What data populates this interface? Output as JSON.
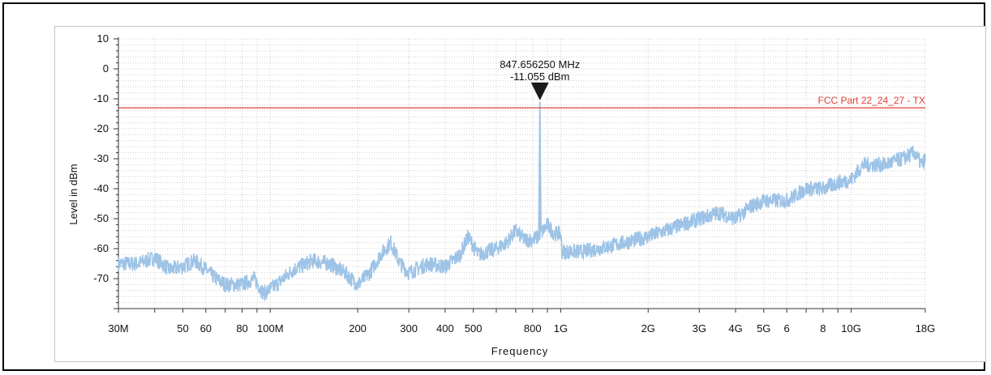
{
  "chart_data": {
    "type": "line",
    "xlabel": "Frequency",
    "ylabel": "Level in dBm",
    "xscale": "log",
    "xlim_hz": [
      30000000,
      18000000000
    ],
    "ylim": [
      -80,
      10
    ],
    "y_ticks": [
      10,
      0,
      -10,
      -20,
      -30,
      -40,
      -50,
      -60,
      -70
    ],
    "x_ticks": [
      {
        "label": "30M",
        "value_hz": 30000000
      },
      {
        "label": "50",
        "value_hz": 50000000
      },
      {
        "label": "60",
        "value_hz": 60000000
      },
      {
        "label": "80",
        "value_hz": 80000000
      },
      {
        "label": "100M",
        "value_hz": 100000000
      },
      {
        "label": "200",
        "value_hz": 200000000
      },
      {
        "label": "300",
        "value_hz": 300000000
      },
      {
        "label": "400",
        "value_hz": 400000000
      },
      {
        "label": "500",
        "value_hz": 500000000
      },
      {
        "label": "800",
        "value_hz": 800000000
      },
      {
        "label": "1G",
        "value_hz": 1000000000
      },
      {
        "label": "2G",
        "value_hz": 2000000000
      },
      {
        "label": "3G",
        "value_hz": 3000000000
      },
      {
        "label": "4G",
        "value_hz": 4000000000
      },
      {
        "label": "5G",
        "value_hz": 5000000000
      },
      {
        "label": "6",
        "value_hz": 6000000000
      },
      {
        "label": "8",
        "value_hz": 8000000000
      },
      {
        "label": "10G",
        "value_hz": 10000000000
      },
      {
        "label": "18G",
        "value_hz": 18000000000
      }
    ],
    "grid": true,
    "series": [
      {
        "color": "#9dc3e6",
        "points": [
          {
            "x": 30000000,
            "y": -65
          },
          {
            "x": 35000000,
            "y": -65
          },
          {
            "x": 40000000,
            "y": -63
          },
          {
            "x": 45000000,
            "y": -67
          },
          {
            "x": 50000000,
            "y": -66
          },
          {
            "x": 55000000,
            "y": -64
          },
          {
            "x": 60000000,
            "y": -67
          },
          {
            "x": 65000000,
            "y": -70
          },
          {
            "x": 70000000,
            "y": -72
          },
          {
            "x": 80000000,
            "y": -72
          },
          {
            "x": 88000000,
            "y": -70
          },
          {
            "x": 95000000,
            "y": -75
          },
          {
            "x": 105000000,
            "y": -72
          },
          {
            "x": 120000000,
            "y": -67
          },
          {
            "x": 140000000,
            "y": -64
          },
          {
            "x": 160000000,
            "y": -65
          },
          {
            "x": 180000000,
            "y": -68
          },
          {
            "x": 200000000,
            "y": -72
          },
          {
            "x": 220000000,
            "y": -68
          },
          {
            "x": 240000000,
            "y": -62
          },
          {
            "x": 260000000,
            "y": -58
          },
          {
            "x": 280000000,
            "y": -65
          },
          {
            "x": 300000000,
            "y": -68
          },
          {
            "x": 350000000,
            "y": -65
          },
          {
            "x": 400000000,
            "y": -66
          },
          {
            "x": 450000000,
            "y": -62
          },
          {
            "x": 480000000,
            "y": -56
          },
          {
            "x": 520000000,
            "y": -62
          },
          {
            "x": 600000000,
            "y": -60
          },
          {
            "x": 650000000,
            "y": -58
          },
          {
            "x": 700000000,
            "y": -54
          },
          {
            "x": 750000000,
            "y": -57
          },
          {
            "x": 800000000,
            "y": -57
          },
          {
            "x": 840000000,
            "y": -56
          },
          {
            "x": 847656250,
            "y": -11.055
          },
          {
            "x": 855000000,
            "y": -55
          },
          {
            "x": 900000000,
            "y": -52
          },
          {
            "x": 950000000,
            "y": -55
          },
          {
            "x": 1000000000,
            "y": -55
          },
          {
            "x": 1010000000,
            "y": -61
          },
          {
            "x": 1200000000,
            "y": -61
          },
          {
            "x": 1500000000,
            "y": -59
          },
          {
            "x": 2000000000,
            "y": -56
          },
          {
            "x": 3000000000,
            "y": -50
          },
          {
            "x": 3500000000,
            "y": -48
          },
          {
            "x": 4000000000,
            "y": -50
          },
          {
            "x": 4500000000,
            "y": -46
          },
          {
            "x": 5000000000,
            "y": -44
          },
          {
            "x": 6000000000,
            "y": -44
          },
          {
            "x": 7000000000,
            "y": -40
          },
          {
            "x": 8000000000,
            "y": -40
          },
          {
            "x": 9000000000,
            "y": -38
          },
          {
            "x": 10000000000,
            "y": -37
          },
          {
            "x": 11000000000,
            "y": -32
          },
          {
            "x": 13000000000,
            "y": -32
          },
          {
            "x": 15000000000,
            "y": -30
          },
          {
            "x": 16500000000,
            "y": -28
          },
          {
            "x": 17500000000,
            "y": -32
          },
          {
            "x": 18000000000,
            "y": -30
          }
        ]
      }
    ],
    "limit_line": {
      "label": "FCC Part 22_24_27 - TX",
      "y": -13,
      "color": "#e0403a"
    },
    "marker": {
      "x_hz": 847656250,
      "y": -11.055,
      "freq_label": "847.656250 MHz",
      "level_label": "-11.055 dBm"
    }
  }
}
